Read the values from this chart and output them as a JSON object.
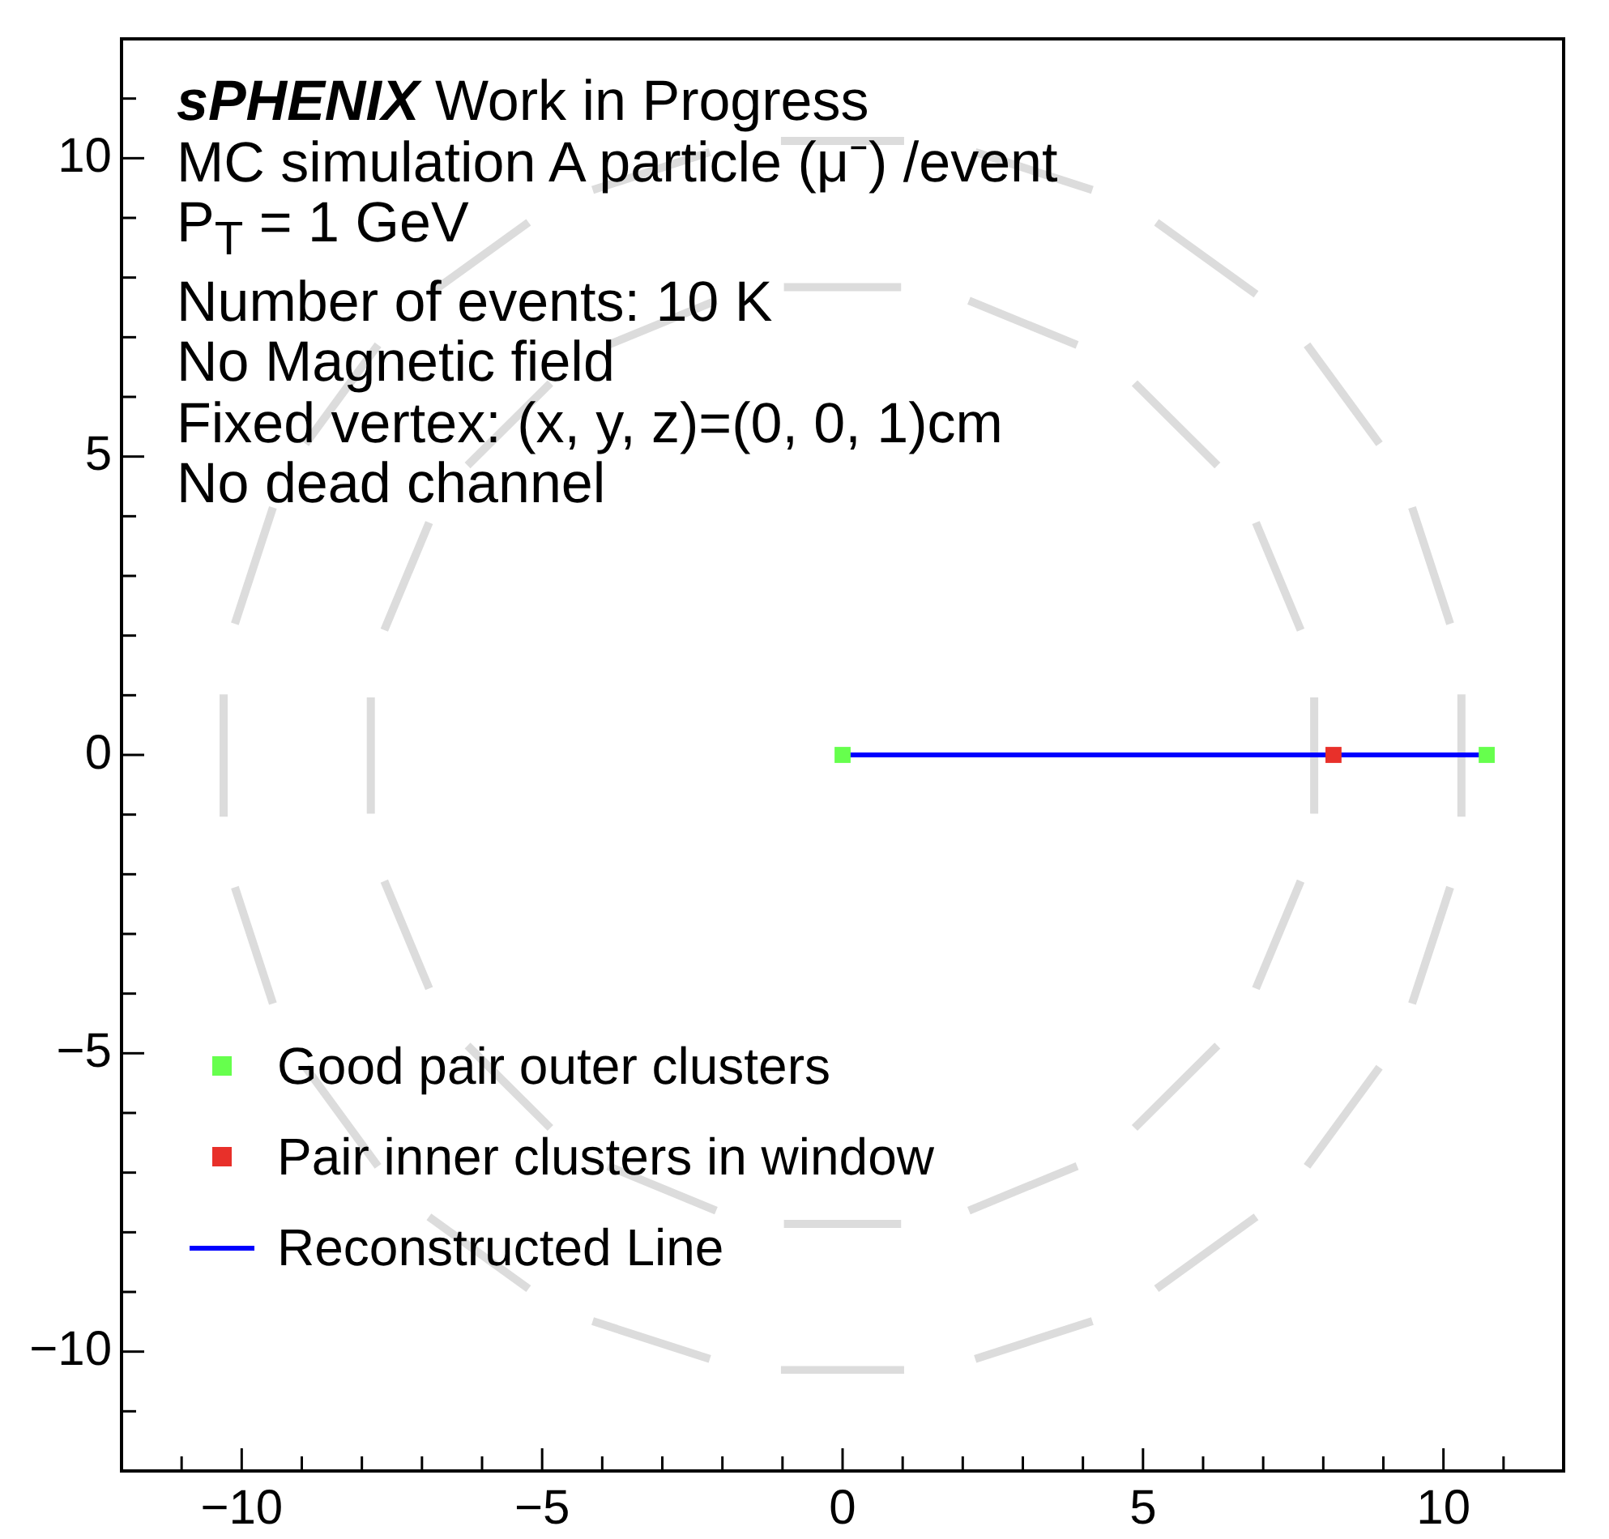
{
  "chart_data": {
    "type": "scatter",
    "annotations": [
      "sPHENIX Work in Progress",
      "MC simulation A particle (μ⁻) /event",
      "P$_{T}$ = 1 GeV",
      "Number of events: 10 K",
      "No Magnetic field",
      "Fixed vertex: (x, y, z)=(0, 0, 1)cm",
      "No dead channel"
    ],
    "series": [
      {
        "name": "Good pair outer clusters",
        "marker": "square",
        "color": "#66ff4d",
        "x": [
          0,
          10.72
        ],
        "values": [
          0,
          0
        ]
      },
      {
        "name": "Pair inner clusters in window",
        "marker": "square",
        "color": "#e8302a",
        "x": [
          8.17
        ],
        "values": [
          0
        ]
      },
      {
        "name": "Reconstructed Line",
        "type": "line",
        "color": "#0000ff",
        "x": [
          0,
          10.72
        ],
        "values": [
          0,
          0
        ]
      }
    ],
    "xlim": [
      -12,
      12
    ],
    "xticks": [
      {
        "value": -11,
        "label": null
      },
      -10,
      {
        "value": -9,
        "label": null
      },
      {
        "value": -8,
        "label": null
      },
      {
        "value": -7,
        "label": null
      },
      {
        "value": -6,
        "label": null
      },
      -5,
      {
        "value": -4,
        "label": null
      },
      {
        "value": -3,
        "label": null
      },
      {
        "value": -2,
        "label": null
      },
      {
        "value": -1,
        "label": null
      },
      0,
      {
        "value": 1,
        "label": null
      },
      {
        "value": 2,
        "label": null
      },
      {
        "value": 3,
        "label": null
      },
      {
        "value": 4,
        "label": null
      },
      5,
      {
        "value": 6,
        "label": null
      },
      {
        "value": 7,
        "label": null
      },
      {
        "value": 8,
        "label": null
      },
      {
        "value": 9,
        "label": null
      },
      10,
      {
        "value": 11,
        "label": null
      }
    ],
    "ylim": [
      -12,
      12
    ],
    "yticks": [
      {
        "value": -11,
        "label": null
      },
      -10,
      {
        "value": -9,
        "label": null
      },
      {
        "value": -8,
        "label": null
      },
      {
        "value": -7,
        "label": null
      },
      {
        "value": -6,
        "label": null
      },
      -5,
      {
        "value": -4,
        "label": null
      },
      {
        "value": -3,
        "label": null
      },
      {
        "value": -2,
        "label": null
      },
      {
        "value": -1,
        "label": null
      },
      0,
      {
        "value": 1,
        "label": null
      },
      {
        "value": 2,
        "label": null
      },
      {
        "value": 3,
        "label": null
      },
      {
        "value": 4,
        "label": null
      },
      5,
      {
        "value": 6,
        "label": null
      },
      {
        "value": 7,
        "label": null
      },
      {
        "value": 8,
        "label": null
      },
      {
        "value": 9,
        "label": null
      },
      10,
      {
        "value": 11,
        "label": null
      }
    ],
    "grid": false,
    "legend": "bottom left",
    "line_style": "solid"
  }
}
